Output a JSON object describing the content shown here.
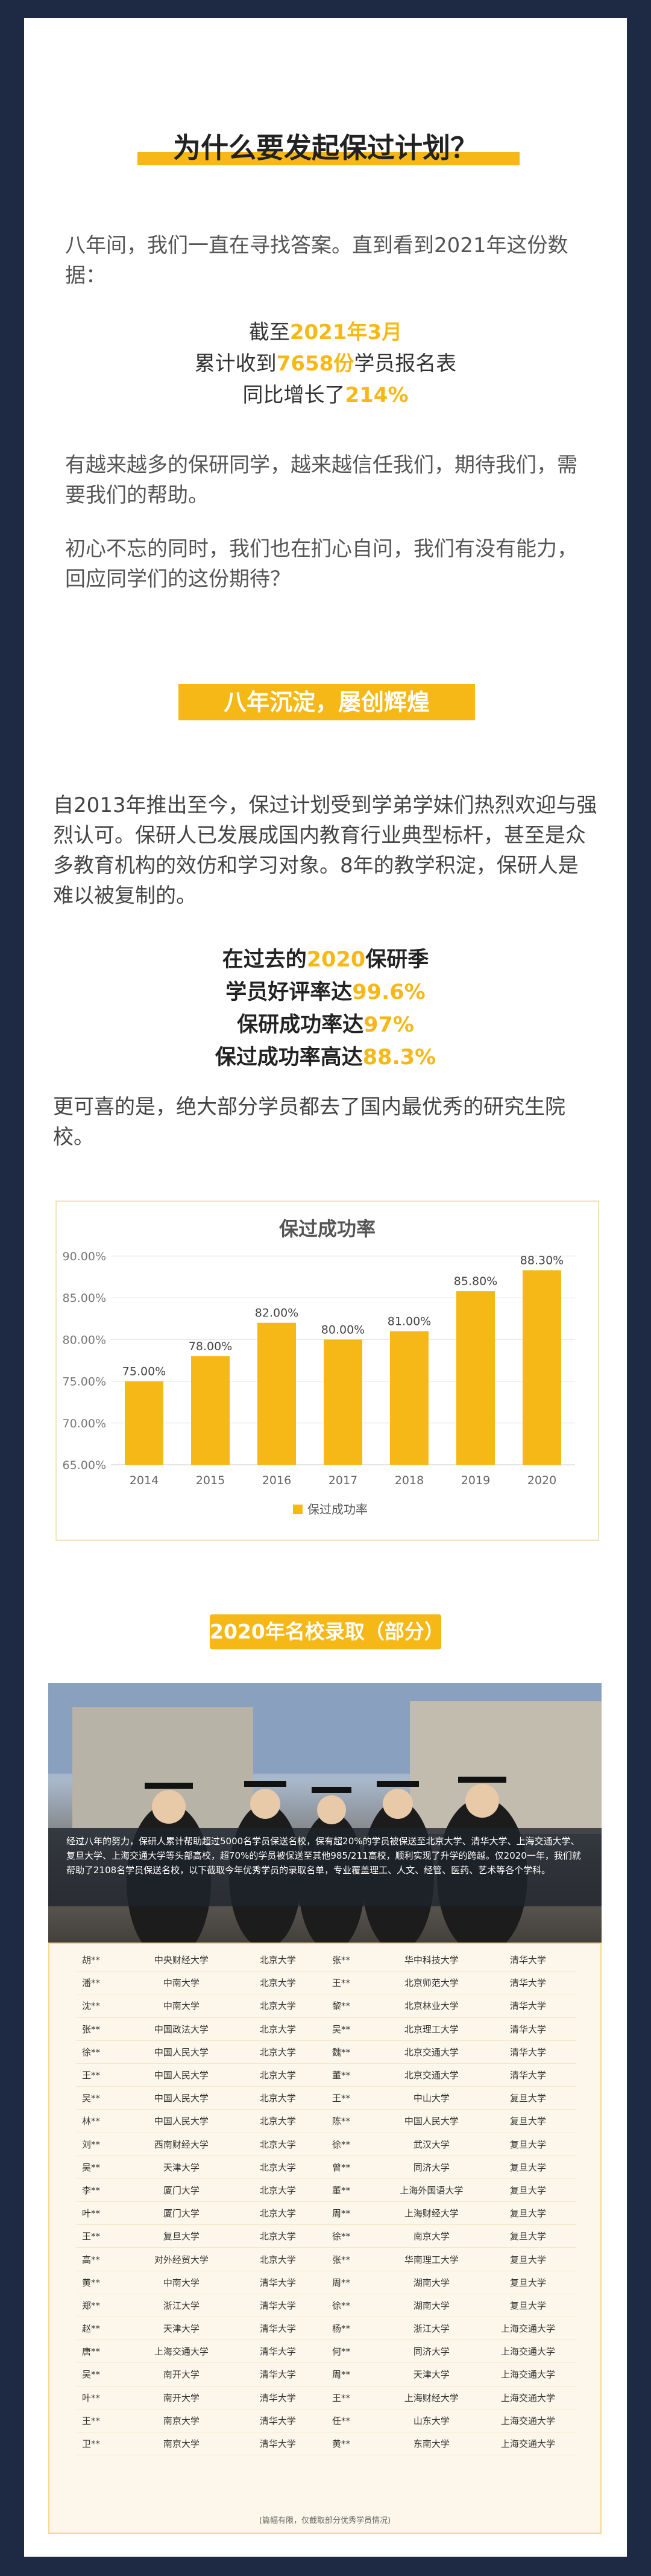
{
  "section1": {
    "title": "为什么要发起保过计划？",
    "para1": "八年间，我们一直在寻找答案。直到看到2021年这份数据：",
    "stats": [
      {
        "pre": "截至",
        "hl": "2021年3月",
        "post": ""
      },
      {
        "pre": "累计收到",
        "hl": "7658份",
        "post": "学员报名表"
      },
      {
        "pre": "同比增长了",
        "hl": "214%",
        "post": ""
      }
    ],
    "para2": "有越来越多的保研同学，越来越信任我们，期待我们，需要我们的帮助。",
    "para3": "初心不忘的同时，我们也在扪心自问，我们有没有能力，回应同学们的这份期待？"
  },
  "section2": {
    "badge": "八年沉淀，屡创辉煌",
    "para1": "自2013年推出至今，保过计划受到学弟学妹们热烈欢迎与强烈认可。保研人已发展成国内教育行业典型标杆，甚至是众多教育机构的效仿和学习对象。8年的教学积淀，保研人是难以被复制的。",
    "stats": [
      {
        "pre": "在过去的",
        "hl": "2020",
        "post": "保研季"
      },
      {
        "pre": "学员好评率达",
        "hl": "99.6%",
        "post": ""
      },
      {
        "pre": "保研成功率达",
        "hl": "97%",
        "post": ""
      },
      {
        "pre": "保过成功率高达",
        "hl": "88.3%",
        "post": ""
      }
    ],
    "para2": "更可喜的是，绝大部分学员都去了国内最优秀的研究生院校。"
  },
  "chart_data": {
    "type": "bar",
    "title": "保过成功率",
    "categories": [
      "2014",
      "2015",
      "2016",
      "2017",
      "2018",
      "2019",
      "2020"
    ],
    "series": [
      {
        "name": "保过成功率",
        "values": [
          75.0,
          78.0,
          82.0,
          80.0,
          81.0,
          85.8,
          88.3
        ]
      }
    ],
    "value_labels": [
      "75.00%",
      "78.00%",
      "82.00%",
      "80.00%",
      "81.00%",
      "85.80%",
      "88.30%"
    ],
    "yticks": [
      "65.00%",
      "70.00%",
      "75.00%",
      "80.00%",
      "85.00%",
      "90.00%"
    ],
    "ylim": [
      65,
      90
    ],
    "legend_position": "bottom",
    "bar_color": "#f5b817",
    "grid": true
  },
  "section3": {
    "badge": "2020年名校录取（部分）",
    "photo_text": "经过八年的努力，保研人累计帮助超过5000名学员保送名校，保有超20%的学员被保送至北京大学、清华大学、上海交通大学、复旦大学、上海交通大学等头部高校，超70%的学员被保送至其他985/211高校，顺利实现了升学的跨越。仅2020一年，我们就帮助了2108名学员保送名校，以下截取今年优秀学员的录取名单，专业覆盖理工、人文、经管、医药、艺术等各个学科。",
    "rows": [
      [
        "胡**",
        "中央财经大学",
        "北京大学",
        "张**",
        "华中科技大学",
        "清华大学"
      ],
      [
        "潘**",
        "中南大学",
        "北京大学",
        "王**",
        "北京师范大学",
        "清华大学"
      ],
      [
        "沈**",
        "中南大学",
        "北京大学",
        "黎**",
        "北京林业大学",
        "清华大学"
      ],
      [
        "张**",
        "中国政法大学",
        "北京大学",
        "吴**",
        "北京理工大学",
        "清华大学"
      ],
      [
        "徐**",
        "中国人民大学",
        "北京大学",
        "魏**",
        "北京交通大学",
        "清华大学"
      ],
      [
        "王**",
        "中国人民大学",
        "北京大学",
        "董**",
        "北京交通大学",
        "清华大学"
      ],
      [
        "吴**",
        "中国人民大学",
        "北京大学",
        "王**",
        "中山大学",
        "复旦大学"
      ],
      [
        "林**",
        "中国人民大学",
        "北京大学",
        "陈**",
        "中国人民大学",
        "复旦大学"
      ],
      [
        "刘**",
        "西南财经大学",
        "北京大学",
        "徐**",
        "武汉大学",
        "复旦大学"
      ],
      [
        "吴**",
        "天津大学",
        "北京大学",
        "曾**",
        "同济大学",
        "复旦大学"
      ],
      [
        "李**",
        "厦门大学",
        "北京大学",
        "董**",
        "上海外国语大学",
        "复旦大学"
      ],
      [
        "叶**",
        "厦门大学",
        "北京大学",
        "周**",
        "上海财经大学",
        "复旦大学"
      ],
      [
        "王**",
        "复旦大学",
        "北京大学",
        "徐**",
        "南京大学",
        "复旦大学"
      ],
      [
        "高**",
        "对外经贸大学",
        "北京大学",
        "张**",
        "华南理工大学",
        "复旦大学"
      ],
      [
        "黄**",
        "中南大学",
        "清华大学",
        "周**",
        "湖南大学",
        "复旦大学"
      ],
      [
        "郑**",
        "浙江大学",
        "清华大学",
        "徐**",
        "湖南大学",
        "复旦大学"
      ],
      [
        "赵**",
        "天津大学",
        "清华大学",
        "杨**",
        "浙江大学",
        "上海交通大学"
      ],
      [
        "唐**",
        "上海交通大学",
        "清华大学",
        "何**",
        "同济大学",
        "上海交通大学"
      ],
      [
        "吴**",
        "南开大学",
        "清华大学",
        "周**",
        "天津大学",
        "上海交通大学"
      ],
      [
        "叶**",
        "南开大学",
        "清华大学",
        "王**",
        "上海财经大学",
        "上海交通大学"
      ],
      [
        "王**",
        "南京大学",
        "清华大学",
        "任**",
        "山东大学",
        "上海交通大学"
      ],
      [
        "卫**",
        "南京大学",
        "清华大学",
        "黄**",
        "东南大学",
        "上海交通大学"
      ]
    ],
    "note": "(篇幅有限，仅截取部分优秀学员情况)"
  }
}
